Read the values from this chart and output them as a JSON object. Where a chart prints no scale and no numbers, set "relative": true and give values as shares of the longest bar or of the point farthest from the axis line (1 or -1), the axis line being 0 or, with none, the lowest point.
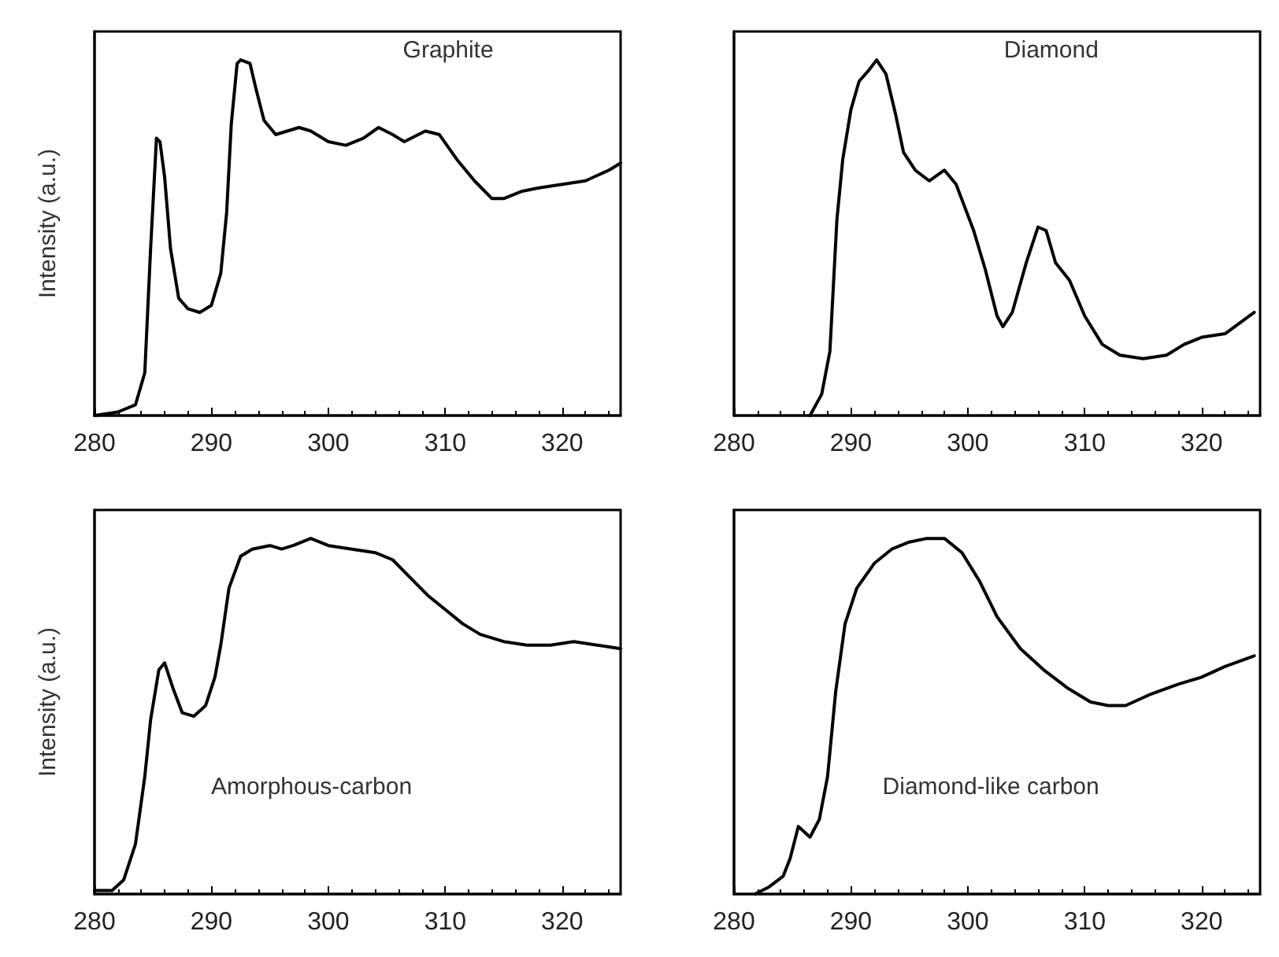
{
  "chart_data": [
    {
      "type": "line",
      "ylabel": "Intensity (a.u.)",
      "annotations": [
        "Graphite"
      ],
      "relative": true,
      "xlim": [
        280,
        325
      ],
      "xticks": [
        280,
        290,
        300,
        310,
        320
      ],
      "tick_labels": "x",
      "grid": false,
      "marker": "none",
      "line_style": "solid",
      "series": [
        {
          "color": "#000000",
          "x": [
            280,
            282,
            283.5,
            284.3,
            284.8,
            285.3,
            285.6,
            286,
            286.5,
            287.2,
            288,
            289,
            290,
            290.8,
            291.3,
            291.7,
            292.2,
            292.5,
            293.3,
            293.8,
            294.5,
            295.5,
            296.5,
            297.5,
            298.5,
            300,
            301.5,
            303,
            304.3,
            305.5,
            306.5,
            308.3,
            309.5,
            311,
            312.5,
            314,
            315,
            316.5,
            318,
            320,
            322,
            324,
            325
          ],
          "values": [
            0,
            0.01,
            0.03,
            0.12,
            0.47,
            0.78,
            0.77,
            0.67,
            0.47,
            0.33,
            0.3,
            0.29,
            0.31,
            0.4,
            0.57,
            0.82,
            0.99,
            1,
            0.99,
            0.92,
            0.83,
            0.79,
            0.8,
            0.81,
            0.8,
            0.77,
            0.76,
            0.78,
            0.81,
            0.79,
            0.77,
            0.8,
            0.79,
            0.72,
            0.66,
            0.61,
            0.61,
            0.63,
            0.64,
            0.65,
            0.66,
            0.69,
            0.71
          ]
        }
      ]
    },
    {
      "type": "line",
      "annotations": [
        "Diamond"
      ],
      "relative": true,
      "xlim": [
        280,
        325
      ],
      "xticks": [
        280,
        290,
        300,
        310,
        320
      ],
      "tick_labels": "x",
      "grid": false,
      "marker": "none",
      "line_style": "solid",
      "series": [
        {
          "color": "#000000",
          "x": [
            286.5,
            287.5,
            288.2,
            288.8,
            289.3,
            290,
            290.7,
            291.5,
            292.2,
            293,
            293.8,
            294.5,
            295.5,
            296.7,
            298,
            299,
            300.5,
            301.5,
            302.5,
            303,
            303.8,
            305,
            306,
            306.7,
            307.5,
            308.7,
            310,
            311.5,
            313,
            315,
            317,
            318.5,
            320,
            322,
            324.5
          ],
          "values": [
            0,
            0.06,
            0.18,
            0.55,
            0.72,
            0.86,
            0.94,
            0.97,
            1,
            0.96,
            0.85,
            0.74,
            0.69,
            0.66,
            0.69,
            0.65,
            0.52,
            0.41,
            0.28,
            0.25,
            0.29,
            0.43,
            0.53,
            0.52,
            0.43,
            0.38,
            0.28,
            0.2,
            0.17,
            0.16,
            0.17,
            0.2,
            0.22,
            0.23,
            0.29
          ]
        }
      ]
    },
    {
      "type": "line",
      "ylabel": "Intensity (a.u.)",
      "annotations": [
        "Amorphous-carbon"
      ],
      "relative": true,
      "xlim": [
        280,
        325
      ],
      "xticks": [
        280,
        290,
        300,
        310,
        320
      ],
      "tick_labels": "x",
      "grid": false,
      "marker": "none",
      "line_style": "solid",
      "series": [
        {
          "color": "#000000",
          "x": [
            280,
            281.5,
            282.5,
            283.5,
            284.3,
            284.8,
            285.5,
            286,
            286.7,
            287.5,
            288.5,
            289.5,
            290.3,
            290.8,
            291.5,
            292.5,
            293.5,
            295,
            296,
            297,
            298.5,
            300,
            302,
            304,
            305.5,
            307,
            308.5,
            310,
            311.5,
            313,
            315,
            317,
            319,
            321,
            323,
            325
          ],
          "values": [
            0.01,
            0.01,
            0.04,
            0.14,
            0.33,
            0.49,
            0.63,
            0.65,
            0.58,
            0.51,
            0.5,
            0.53,
            0.61,
            0.7,
            0.86,
            0.95,
            0.97,
            0.98,
            0.97,
            0.98,
            1,
            0.98,
            0.97,
            0.96,
            0.94,
            0.89,
            0.84,
            0.8,
            0.76,
            0.73,
            0.71,
            0.7,
            0.7,
            0.71,
            0.7,
            0.69
          ]
        }
      ]
    },
    {
      "type": "line",
      "annotations": [
        "Diamond-like carbon"
      ],
      "relative": true,
      "xlim": [
        280,
        325
      ],
      "xticks": [
        280,
        290,
        300,
        310,
        320
      ],
      "tick_labels": "x",
      "grid": false,
      "marker": "none",
      "line_style": "solid",
      "series": [
        {
          "color": "#000000",
          "x": [
            281.8,
            283,
            284.2,
            284.8,
            285.5,
            286.5,
            287.3,
            288,
            288.7,
            289.5,
            290.5,
            292,
            293.5,
            295,
            296.5,
            298,
            299.5,
            301,
            302.5,
            304.5,
            306.5,
            308.5,
            310.5,
            312,
            313.5,
            315.5,
            318,
            320,
            322,
            324.5
          ],
          "values": [
            0,
            0.02,
            0.05,
            0.1,
            0.19,
            0.16,
            0.21,
            0.33,
            0.57,
            0.76,
            0.86,
            0.93,
            0.97,
            0.99,
            1,
            1,
            0.96,
            0.88,
            0.78,
            0.69,
            0.63,
            0.58,
            0.54,
            0.53,
            0.53,
            0.56,
            0.59,
            0.61,
            0.64,
            0.67
          ]
        }
      ]
    }
  ]
}
